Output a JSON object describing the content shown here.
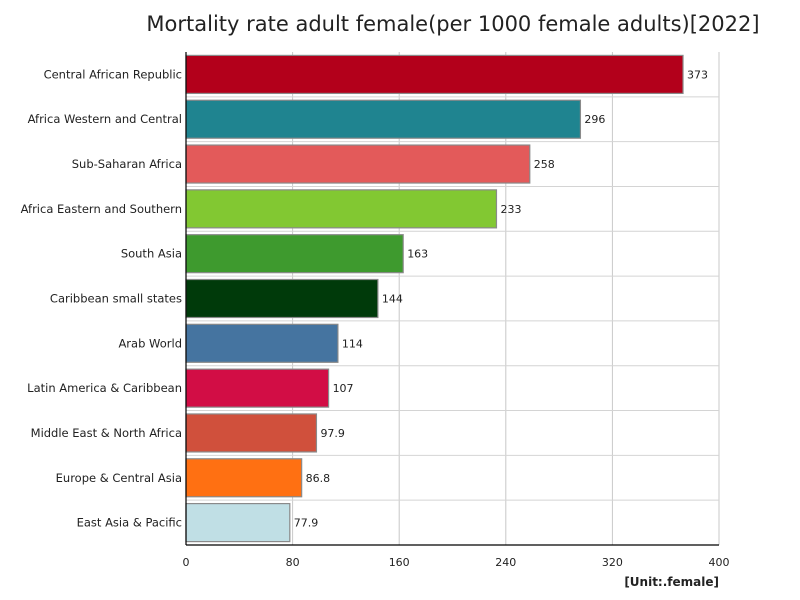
{
  "chart_data": {
    "type": "bar",
    "orientation": "horizontal",
    "title": "Mortality rate adult female(per 1000 female adults)[2022]",
    "unit": "[Unit:.female]",
    "xlim": [
      0,
      400
    ],
    "xticks": [
      "0",
      "80",
      "160",
      "240",
      "320",
      "400"
    ],
    "grid": true,
    "categories": [
      "Central African Republic",
      "Africa Western and Central",
      "Sub-Saharan Africa",
      "Africa Eastern and Southern",
      "South Asia",
      "Caribbean small states",
      "Arab World",
      "Latin America & Caribbean",
      "Middle East & North Africa",
      "Europe & Central Asia",
      "East Asia & Pacific"
    ],
    "values": [
      373,
      296,
      258,
      233,
      163,
      144,
      114,
      107,
      97.9,
      86.8,
      77.9
    ],
    "value_labels": [
      "373",
      "296",
      "258",
      "233",
      "163",
      "144",
      "114",
      "107",
      "97.9",
      "86.8",
      "77.9"
    ],
    "colors": [
      "#b3001b",
      "#1f8490",
      "#e35a5a",
      "#82c832",
      "#3e9a2e",
      "#003a0a",
      "#4574a0",
      "#d20d45",
      "#d0503c",
      "#ff7012",
      "#c0dfe5"
    ]
  }
}
